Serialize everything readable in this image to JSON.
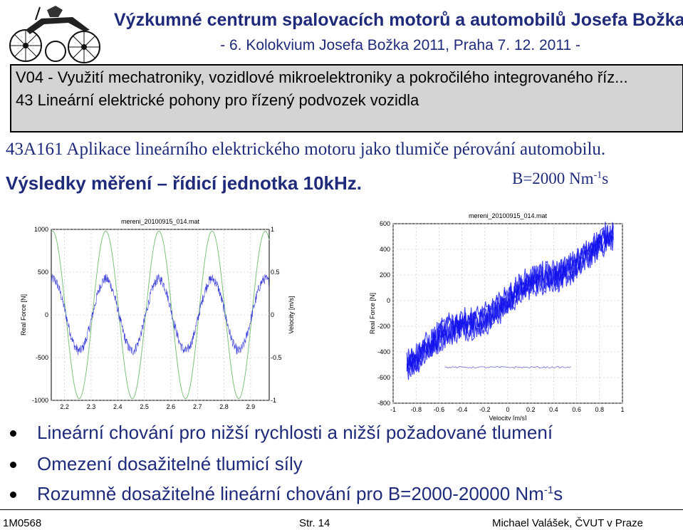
{
  "header": {
    "title": "Výzkumné centrum spalovacích motorů a automobilů Josefa Božka",
    "subtitle": "- 6. Kolokvium Josefa Božka 2011, Praha 7. 12. 2011 -"
  },
  "section_box": {
    "line1": "V04 - Využití mechatroniky, vozidlové mikroelektroniky a pokročilého integrovaného říz...",
    "line2": "43 Lineární elektrické pohony pro řízený podvozek vozidla"
  },
  "subtitle_line": "43A161 Aplikace lineárního elektrického motoru jako tlumiče pérování automobilu.",
  "results_heading": "Výsledky měření – řídicí jednotka 10kHz.",
  "b_value": {
    "text": "B=2000 Nm",
    "sup": "-1",
    "suffix": "s"
  },
  "colors": {
    "blue_text": "#1f2a7a",
    "force_line": "#3b3fd6",
    "velocity_line": "#7ec27e",
    "scatter": "#1010ee"
  },
  "chart_data": [
    {
      "type": "line",
      "title": "mereni_20100915_014.mat",
      "ylabel": "Real Force [N]",
      "y2label": "Velocity [m/s]",
      "xlabel": "",
      "xlim": [
        2.15,
        2.97
      ],
      "ylim": [
        -1000,
        1000
      ],
      "y2lim": [
        -1,
        1
      ],
      "x_ticks": [
        "2.2",
        "2.3",
        "2.4",
        "2.5",
        "2.6",
        "2.7",
        "2.8",
        "2.9"
      ],
      "y_ticks": [
        "1000",
        "500",
        "0",
        "-500",
        "-1000"
      ],
      "y2_ticks": [
        "1",
        "0.5",
        "0",
        "-0.5",
        "-1"
      ],
      "series": [
        {
          "name": "",
          "axis": "left",
          "waveform": "sine",
          "amplitude": 420,
          "period": 0.2,
          "noise": 60
        },
        {
          "name": "",
          "axis": "right",
          "waveform": "sine",
          "amplitude": 0.98,
          "period": 0.2,
          "noise": 0
        }
      ]
    },
    {
      "type": "scatter",
      "title": "mereni_20100915_014.mat",
      "ylabel": "Real Force [N]",
      "xlabel": "Velocity [m/s]",
      "xlim": [
        -1,
        1
      ],
      "ylim": [
        -800,
        600
      ],
      "x_ticks": [
        "-1",
        "-0.8",
        "-0.6",
        "-0.4",
        "-0.2",
        "0",
        "0.2",
        "0.4",
        "0.6",
        "0.8",
        "1"
      ],
      "y_ticks": [
        "600",
        "400",
        "200",
        "0",
        "-200",
        "-400",
        "-600",
        "-800"
      ],
      "series": [
        {
          "name": "",
          "relation": "linear",
          "slope": 520,
          "x_range": [
            -0.88,
            0.92
          ],
          "band_width": 90
        },
        {
          "name": "",
          "relation": "flat",
          "y": -520,
          "x_range": [
            -0.55,
            0.55
          ]
        }
      ]
    }
  ],
  "bullets": [
    "Lineární chování pro nižší rychlosti a nižší požadované tlumení",
    "Omezení dosažitelné tlumicí síly",
    {
      "text": "Rozumně dosažitelné lineární chování pro B=2000-20000 Nm",
      "sup": "-1",
      "suffix": "s"
    }
  ],
  "footer": {
    "left": "1M0568",
    "center": "Str. 14",
    "right": "Michael Valášek, ČVUT v Praze"
  }
}
